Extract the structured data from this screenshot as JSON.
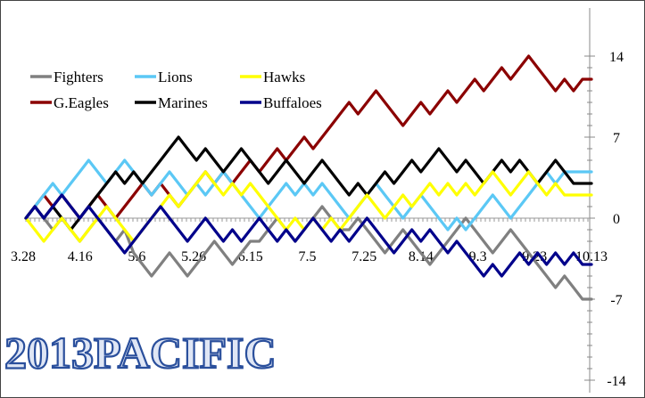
{
  "watermark": "2013PACIFIC",
  "chart_data": {
    "type": "line",
    "title": "",
    "xlabel": "",
    "ylabel": "",
    "ylim": [
      -14,
      14
    ],
    "yticks": [
      14,
      7,
      0,
      -7,
      -14
    ],
    "x_tick_labels": [
      "3.28",
      "4.16",
      "5.6",
      "5.26",
      "6.15",
      "7.5",
      "7.25",
      "8.14",
      "9.3",
      "9.23",
      "10.13"
    ],
    "legend_position": "top-left",
    "grid": false,
    "series": [
      {
        "name": "Fighters",
        "color": "#808080",
        "values": [
          0,
          1,
          0,
          -1,
          0,
          -1,
          -2,
          -1,
          0,
          -1,
          -2,
          -1,
          -3,
          -4,
          -5,
          -4,
          -3,
          -4,
          -5,
          -4,
          -3,
          -2,
          -3,
          -4,
          -3,
          -2,
          -2,
          -1,
          0,
          -1,
          -2,
          -1,
          0,
          1,
          0,
          -1,
          -1,
          0,
          -1,
          -2,
          -3,
          -2,
          -1,
          -2,
          -3,
          -4,
          -3,
          -2,
          -1,
          0,
          -1,
          -2,
          -3,
          -2,
          -1,
          -2,
          -3,
          -4,
          -5,
          -6,
          -5,
          -6,
          -7,
          -7
        ]
      },
      {
        "name": "G.Eagles",
        "color": "#8B0000",
        "values": [
          0,
          1,
          2,
          1,
          2,
          1,
          0,
          1,
          2,
          1,
          0,
          1,
          2,
          3,
          2,
          3,
          2,
          1,
          2,
          3,
          4,
          3,
          4,
          3,
          4,
          5,
          4,
          5,
          6,
          5,
          6,
          7,
          6,
          7,
          8,
          9,
          10,
          9,
          10,
          11,
          10,
          9,
          8,
          9,
          10,
          9,
          10,
          11,
          10,
          11,
          12,
          11,
          12,
          13,
          12,
          13,
          14,
          13,
          12,
          11,
          12,
          11,
          12,
          12
        ]
      },
      {
        "name": "Lions",
        "color": "#5BC8F5",
        "values": [
          0,
          1,
          2,
          3,
          2,
          3,
          4,
          5,
          4,
          3,
          4,
          5,
          4,
          3,
          2,
          3,
          4,
          3,
          2,
          3,
          2,
          3,
          4,
          3,
          2,
          1,
          0,
          1,
          2,
          3,
          2,
          3,
          2,
          3,
          2,
          1,
          0,
          1,
          2,
          3,
          2,
          1,
          0,
          1,
          2,
          1,
          0,
          -1,
          0,
          -1,
          0,
          1,
          2,
          1,
          0,
          1,
          2,
          3,
          4,
          3,
          4,
          4,
          4,
          4
        ]
      },
      {
        "name": "Marines",
        "color": "#000000",
        "values": [
          0,
          1,
          0,
          1,
          0,
          -1,
          0,
          1,
          2,
          3,
          4,
          3,
          4,
          3,
          4,
          5,
          6,
          7,
          6,
          5,
          6,
          5,
          4,
          5,
          6,
          5,
          4,
          3,
          4,
          5,
          4,
          3,
          4,
          5,
          4,
          3,
          2,
          3,
          2,
          3,
          4,
          3,
          4,
          5,
          4,
          5,
          6,
          5,
          4,
          5,
          4,
          3,
          4,
          5,
          4,
          5,
          4,
          3,
          4,
          5,
          4,
          3,
          3,
          3
        ]
      },
      {
        "name": "Hawks",
        "color": "#FFFF00",
        "values": [
          0,
          -1,
          -2,
          -1,
          0,
          -1,
          -2,
          -1,
          0,
          1,
          0,
          -1,
          -2,
          -1,
          0,
          1,
          2,
          1,
          2,
          3,
          4,
          3,
          2,
          3,
          2,
          3,
          2,
          1,
          0,
          -1,
          0,
          -1,
          0,
          -1,
          0,
          -1,
          0,
          1,
          2,
          1,
          0,
          1,
          2,
          1,
          2,
          3,
          2,
          3,
          2,
          3,
          2,
          3,
          4,
          3,
          2,
          3,
          4,
          3,
          2,
          3,
          2,
          2,
          2,
          2
        ]
      },
      {
        "name": "Buffaloes",
        "color": "#00008B",
        "values": [
          0,
          1,
          0,
          1,
          2,
          1,
          0,
          1,
          0,
          -1,
          -2,
          -3,
          -2,
          -1,
          0,
          1,
          0,
          -1,
          -2,
          -1,
          0,
          -1,
          -2,
          -1,
          -2,
          -1,
          0,
          -1,
          -2,
          -1,
          -2,
          -1,
          0,
          -1,
          -2,
          -1,
          -2,
          -1,
          0,
          -1,
          -2,
          -3,
          -2,
          -1,
          -2,
          -1,
          -2,
          -3,
          -2,
          -3,
          -4,
          -5,
          -4,
          -5,
          -4,
          -3,
          -4,
          -3,
          -4,
          -3,
          -4,
          -3,
          -4,
          -4
        ]
      }
    ]
  }
}
